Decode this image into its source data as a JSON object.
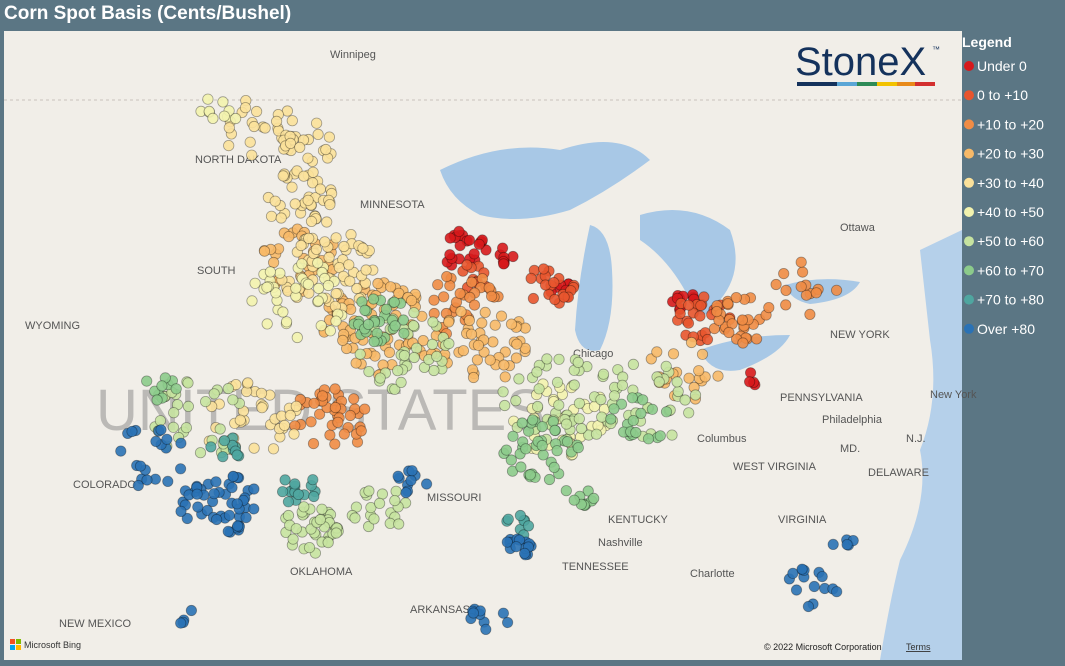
{
  "header": {
    "title": "Corn Spot Basis (Cents/Bushel)"
  },
  "logo": {
    "text": "StoneX",
    "mark": "™"
  },
  "legend": {
    "title": "Legend",
    "items": [
      {
        "label": "Under 0",
        "color": "#d7191c"
      },
      {
        "label": "0 to +10",
        "color": "#e8552e"
      },
      {
        "label": "+10 to +20",
        "color": "#f08c45"
      },
      {
        "label": "+20 to +30",
        "color": "#f7b968"
      },
      {
        "label": "+30 to +40",
        "color": "#fbe19a"
      },
      {
        "label": "+40 to +50",
        "color": "#f3f3ae"
      },
      {
        "label": "+50 to +60",
        "color": "#c6e3a0"
      },
      {
        "label": "+60 to +70",
        "color": "#8ccb8b"
      },
      {
        "label": "+70 to +80",
        "color": "#4fa6a0"
      },
      {
        "label": "Over +80",
        "color": "#2a72b5"
      }
    ]
  },
  "map_labels": [
    "Winnipeg",
    "NORTH DAKOTA",
    "MINNESOTA",
    "SOUTH",
    "WYOMING",
    "COLORADO",
    "MISSOURI",
    "KENTUCKY",
    "TENNESSEE",
    "Nashville",
    "OKLAHOMA",
    "ARKANSAS",
    "NEW MEXICO",
    "Ottawa",
    "NEW YORK",
    "PENNSYLVANIA",
    "Philadelphia",
    "Columbus",
    "WEST VIRGINIA",
    "VIRGINIA",
    "MD.",
    "DELAWARE",
    "N.J.",
    "Chicago",
    "Charlotte",
    "New York"
  ],
  "watermark": "UNITED STATES",
  "attribution": {
    "provider": "Microsoft Bing",
    "copyright": "© 2022 Microsoft Corporation",
    "terms": "Terms"
  }
}
